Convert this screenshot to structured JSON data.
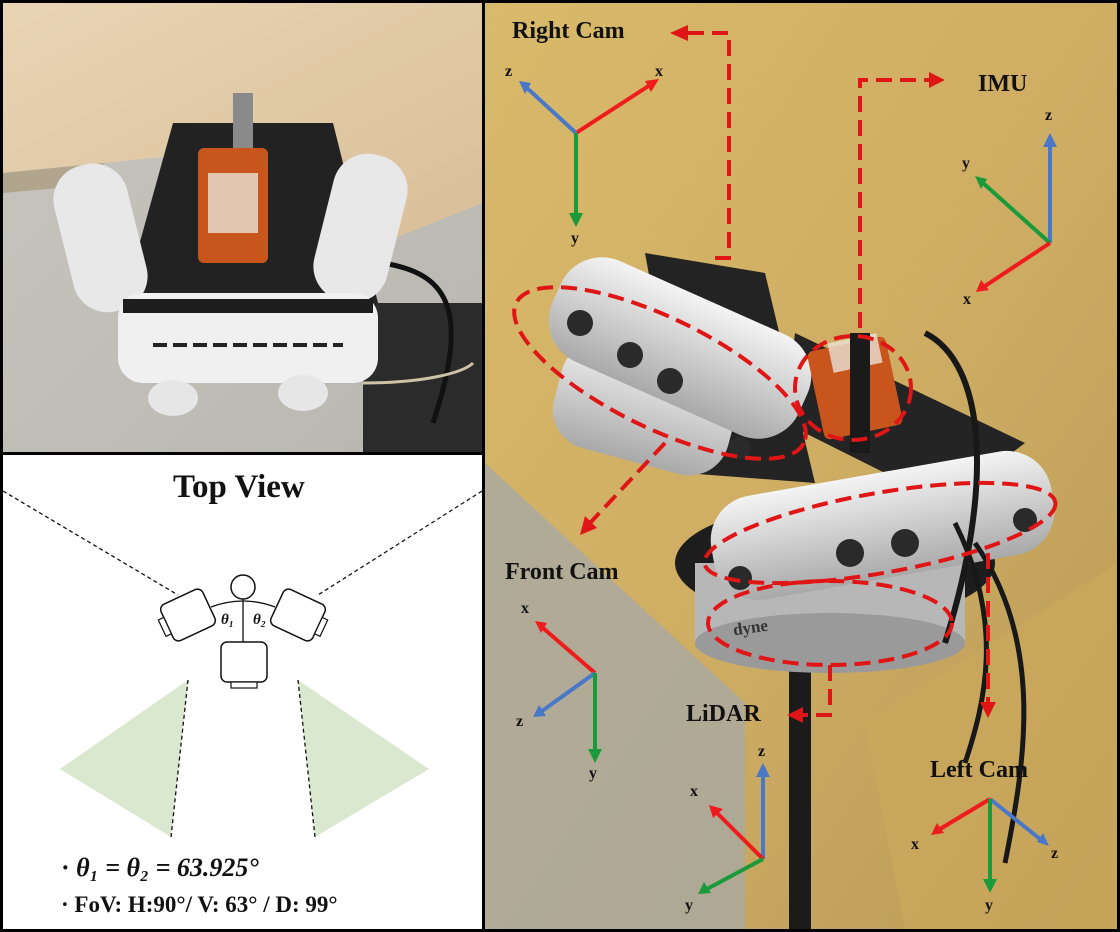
{
  "top_view": {
    "title": "Top View",
    "theta1": "θ₁",
    "theta2": "θ₂",
    "eq_bullet": "· ",
    "eq_text": "θ₁ = θ₂ = 63.925°",
    "fov_text": "· FoV: H:90°/ V: 63° / D: 99°"
  },
  "sensors": {
    "right_cam": "Right Cam",
    "imu": "IMU",
    "front_cam": "Front Cam",
    "lidar": "LiDAR",
    "left_cam": "Left Cam"
  },
  "brand_text": "dyne",
  "axes": {
    "x": "x",
    "y": "y",
    "z": "z"
  },
  "colors": {
    "x_axis": "#ee1c1c",
    "y_axis": "#1a9a3a",
    "z_axis": "#4a78c8",
    "annotation": "#e01515",
    "fov_fill": "#d9e8cf"
  }
}
